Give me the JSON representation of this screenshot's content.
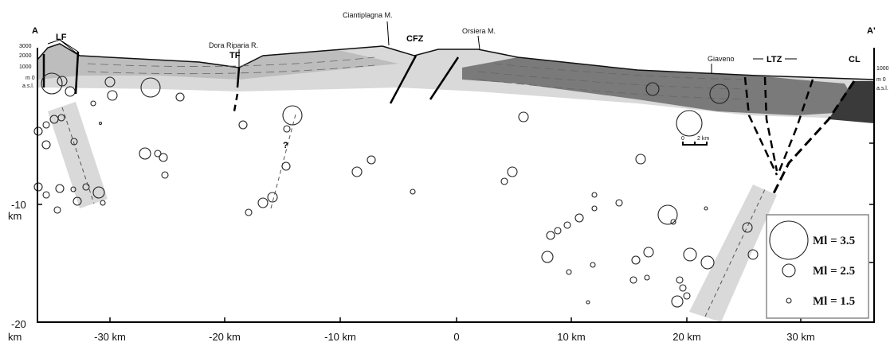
{
  "section": {
    "end_left": "A",
    "end_right": "A'",
    "labels": [
      "LF",
      "TF",
      "Dora Riparia R.",
      "Ciantiplagna M.",
      "CFZ",
      "Orsiera M.",
      "Giaveno",
      "LTZ",
      "CL"
    ],
    "question": "?"
  },
  "elevation_axis": {
    "left": [
      "3000",
      "2000",
      "1000",
      "m 0",
      "a.s.l."
    ],
    "right": [
      "1000",
      "m 0",
      "a.s.l."
    ]
  },
  "depth_axis": [
    {
      "label": "-10",
      "unit": "km"
    },
    {
      "label": "-20",
      "unit": "km"
    }
  ],
  "distance_axis": [
    "-30 km",
    "-20 km",
    "-10 km",
    "0",
    "10 km",
    "20 km",
    "30 km"
  ],
  "scale_bar": [
    "0",
    "2 km"
  ],
  "legend": [
    "Ml = 3.5",
    "Ml = 2.5",
    "Ml = 1.5"
  ]
}
